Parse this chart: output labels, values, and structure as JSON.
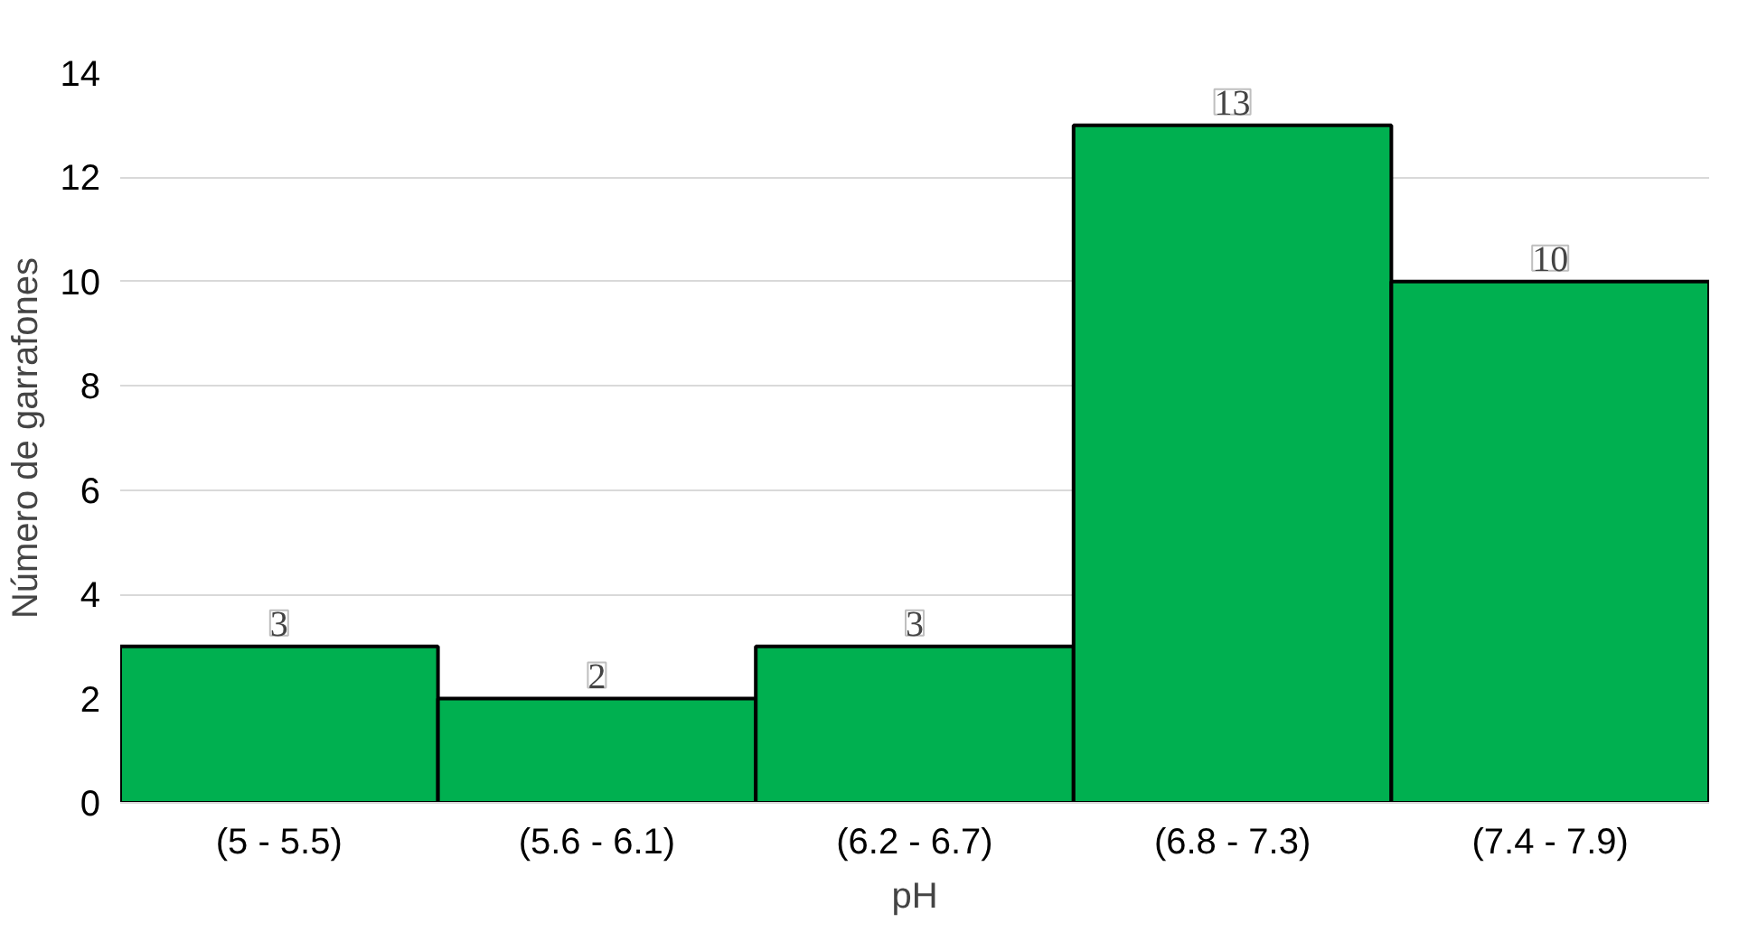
{
  "chart_data": {
    "type": "bar",
    "xlabel": "pH",
    "ylabel": "Número de garrafones",
    "categories": [
      "(5 - 5.5)",
      "(5.6 - 6.1)",
      "(6.2 - 6.7)",
      "(6.8 - 7.3)",
      "(7.4 - 7.9)"
    ],
    "values": [
      3,
      2,
      3,
      13,
      10
    ],
    "color": "#00b050",
    "ylim": [
      0,
      14
    ],
    "yticks": [
      0,
      2,
      4,
      6,
      8,
      10,
      12,
      14
    ],
    "grid": "y",
    "data_labels": true
  }
}
